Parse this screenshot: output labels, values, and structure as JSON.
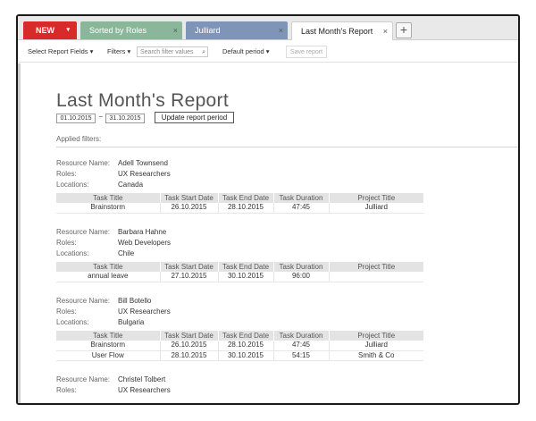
{
  "tabs": {
    "new": {
      "label": "NEW",
      "caret": "▾"
    },
    "sorted": {
      "label": "Sorted by Roles",
      "close": "×"
    },
    "julliard": {
      "label": "Julliard",
      "close": "×"
    },
    "active": {
      "label": "Last Month's Report",
      "close": "×"
    },
    "add": {
      "label": "+"
    }
  },
  "toolbar": {
    "select_fields": "Select Report Fields ▾",
    "filters": "Filters ▾",
    "search_placeholder": "Search filter values",
    "search_icon": "⌕",
    "period": "Default period ▾",
    "save": "Save report"
  },
  "report": {
    "title": "Last Month's Report",
    "date_from": "01.10.2015",
    "date_sep": "–",
    "date_to": "31.10.2015",
    "update_label": "Update report period",
    "applied_filters": "Applied filters:"
  },
  "labels": {
    "name": "Resource Name:",
    "roles": "Roles:",
    "locations": "Locations:"
  },
  "columns": [
    "Task Title",
    "Task Start Date",
    "Task End Date",
    "Task Duration",
    "Project Title"
  ],
  "resources": [
    {
      "name": "Adell Townsend",
      "roles": "UX Researchers",
      "location": "Canada",
      "tasks": [
        [
          "Brainstorm",
          "26.10.2015",
          "28.10.2015",
          "47:45",
          "Julliard"
        ]
      ]
    },
    {
      "name": "Barbara Hahne",
      "roles": "Web Developers",
      "location": "Chile",
      "tasks": [
        [
          "annual leave",
          "27.10.2015",
          "30.10.2015",
          "96:00",
          ""
        ]
      ]
    },
    {
      "name": "Bill Botello",
      "roles": "UX Researchers",
      "location": "Bulgaria",
      "tasks": [
        [
          "Brainstorm",
          "26.10.2015",
          "28.10.2015",
          "47:45",
          "Julliard"
        ],
        [
          "User Flow",
          "28.10.2015",
          "30.10.2015",
          "54:15",
          "Smith & Co"
        ]
      ]
    },
    {
      "name": "Christel Tolbert",
      "roles": "UX Researchers"
    }
  ]
}
